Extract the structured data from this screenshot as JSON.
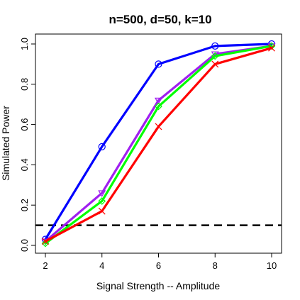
{
  "chart_data": {
    "type": "line",
    "title": "n=500, d=50, k=10",
    "xlabel": "Signal Strength -- Amplitude",
    "ylabel": "Simulated Power",
    "x": [
      2,
      4,
      6,
      8,
      10
    ],
    "xlim": [
      2,
      10
    ],
    "ylim": [
      0,
      1
    ],
    "xticks": [
      "2",
      "4",
      "6",
      "8",
      "10"
    ],
    "yticks": [
      "0.0",
      "0.2",
      "0.4",
      "0.6",
      "0.8",
      "1.0"
    ],
    "grid": false,
    "series": [
      {
        "color": "#0000ff",
        "marker": "circle",
        "values": [
          0.03,
          0.49,
          0.9,
          0.99,
          1.0
        ]
      },
      {
        "color": "#a020f0",
        "marker": "triangle-down",
        "values": [
          0.02,
          0.26,
          0.72,
          0.95,
          0.99
        ]
      },
      {
        "color": "#00ff00",
        "marker": "diamond",
        "values": [
          0.01,
          0.22,
          0.69,
          0.94,
          0.99
        ]
      },
      {
        "color": "#ff0000",
        "marker": "x",
        "values": [
          0.02,
          0.17,
          0.59,
          0.9,
          0.98
        ]
      }
    ],
    "reference_line": {
      "y": 0.1,
      "style": "dashed",
      "color": "#000000"
    }
  }
}
